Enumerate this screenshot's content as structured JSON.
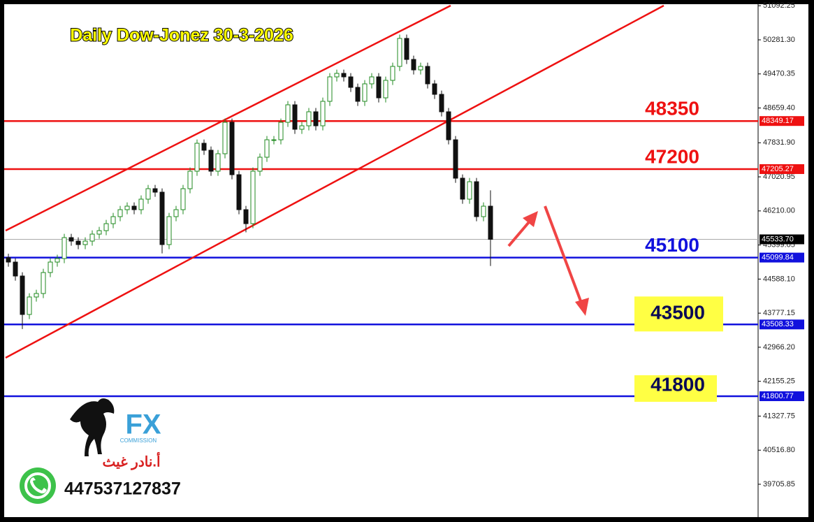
{
  "chart_data": {
    "type": "candlestick",
    "title": "Daily Dow-Jonez 30-3-2026",
    "ylim": [
      38924,
      51096
    ],
    "yticks": [
      51092.25,
      {
        "value": 50281.3,
        "label": "50281.30"
      },
      49470.35,
      {
        "value": 48659.4,
        "label": "48659.40"
      },
      {
        "value": 47831.9,
        "label": "47831.90"
      },
      47020.95,
      {
        "value": 46210,
        "label": "46210.00"
      },
      45399.05,
      {
        "value": 44588.1,
        "label": "44588.10"
      },
      43777.15,
      {
        "value": 42966.2,
        "label": "42966.20"
      },
      42155.25,
      41327.75,
      {
        "value": 40516.8,
        "label": "40516.80"
      },
      39705.85
    ],
    "up_color": "#1f8a1f",
    "down_color": "#111111",
    "ohlc": {
      "open": [
        45100,
        44993,
        44661,
        43746,
        44162,
        44245,
        44744,
        44993,
        45077,
        45575,
        45492,
        45409,
        45492,
        45658,
        45741,
        45907,
        46074,
        46240,
        46323,
        46240,
        46490,
        46739,
        46656,
        45409,
        46074,
        46240,
        46739,
        47155,
        47820,
        47654,
        47155,
        47571,
        48319,
        47072,
        46240,
        45907,
        47155,
        47488,
        47903,
        47903,
        48319,
        48735,
        48153,
        48236,
        48569,
        48236,
        48818,
        49400,
        49483,
        49400,
        49150,
        48818,
        49234,
        49400,
        48901,
        49317,
        49649,
        50315,
        49815,
        49566,
        49649,
        49234,
        48984,
        48569,
        47903,
        46989,
        46490,
        46905,
        46074,
        46323
      ],
      "high": [
        45190,
        45083,
        44751,
        44252,
        44335,
        44834,
        45083,
        45167,
        45665,
        45665,
        45582,
        45582,
        45748,
        45831,
        45997,
        46164,
        46330,
        46413,
        46413,
        46580,
        46829,
        46829,
        46746,
        46164,
        46330,
        46829,
        47245,
        47910,
        47910,
        47744,
        47661,
        48409,
        48409,
        47162,
        46330,
        47245,
        47578,
        47993,
        47993,
        48409,
        48825,
        48825,
        48326,
        48659,
        48659,
        48908,
        49490,
        49573,
        49573,
        49490,
        49240,
        49324,
        49490,
        49490,
        49407,
        49739,
        50405,
        50405,
        49905,
        49739,
        49739,
        49324,
        49074,
        48659,
        47993,
        47079,
        46995,
        46995,
        46413,
        46700
      ],
      "low": [
        44883,
        44551,
        43400,
        43636,
        44052,
        44135,
        44634,
        44883,
        44967,
        45382,
        45299,
        45299,
        45382,
        45548,
        45631,
        45797,
        45964,
        46130,
        46130,
        46130,
        46380,
        46546,
        45200,
        45299,
        45964,
        46130,
        46629,
        47045,
        47544,
        47045,
        47045,
        47461,
        46962,
        46130,
        45700,
        45797,
        47045,
        47378,
        47793,
        47793,
        48209,
        48043,
        48043,
        48126,
        48126,
        48126,
        48708,
        49290,
        49290,
        49040,
        48708,
        48708,
        49124,
        48791,
        48791,
        49207,
        49539,
        49705,
        49456,
        49456,
        49124,
        48874,
        48459,
        47793,
        46879,
        46380,
        46380,
        45964,
        45964,
        44900
      ],
      "close": [
        44993,
        44661,
        43746,
        44162,
        44245,
        44744,
        44993,
        45077,
        45575,
        45492,
        45409,
        45492,
        45658,
        45741,
        45907,
        46074,
        46240,
        46323,
        46240,
        46490,
        46739,
        46656,
        45409,
        46074,
        46240,
        46739,
        47155,
        47820,
        47654,
        47155,
        47571,
        48319,
        47072,
        46240,
        45907,
        47155,
        47488,
        47903,
        47903,
        48319,
        48735,
        48153,
        48236,
        48569,
        48236,
        48818,
        49400,
        49483,
        49400,
        49150,
        48818,
        49234,
        49400,
        48901,
        49317,
        49649,
        50315,
        49815,
        49566,
        49649,
        49234,
        48984,
        48569,
        47903,
        46989,
        46490,
        46905,
        46074,
        46323,
        45534
      ]
    },
    "current_price": {
      "value": 45533.7,
      "label": "45533.70",
      "color": "#000000"
    },
    "levels": [
      {
        "value": 48349.17,
        "label": "48349.17",
        "name": "48350",
        "color": "#ee1111",
        "text_color": "#ee1111",
        "highlight": false
      },
      {
        "value": 47205.27,
        "label": "47205.27",
        "name": "47200",
        "color": "#ee1111",
        "text_color": "#ee1111",
        "highlight": false
      },
      {
        "value": 45099.84,
        "label": "45099.84",
        "name": "45100",
        "color": "#1111dd",
        "text_color": "#1111dd",
        "highlight": false
      },
      {
        "value": 43508.33,
        "label": "43508.33",
        "name": "43500",
        "color": "#1111dd",
        "text_color": "#0a0a55",
        "highlight": true
      },
      {
        "value": 41800.77,
        "label": "41800.77",
        "name": "41800",
        "color": "#1111dd",
        "text_color": "#0a0a55",
        "highlight": true
      }
    ],
    "annotations": {
      "brand": "FX",
      "brand_sub": "COMMISSION",
      "author": "أ.نادر غيث",
      "phone": "447537127837"
    }
  }
}
